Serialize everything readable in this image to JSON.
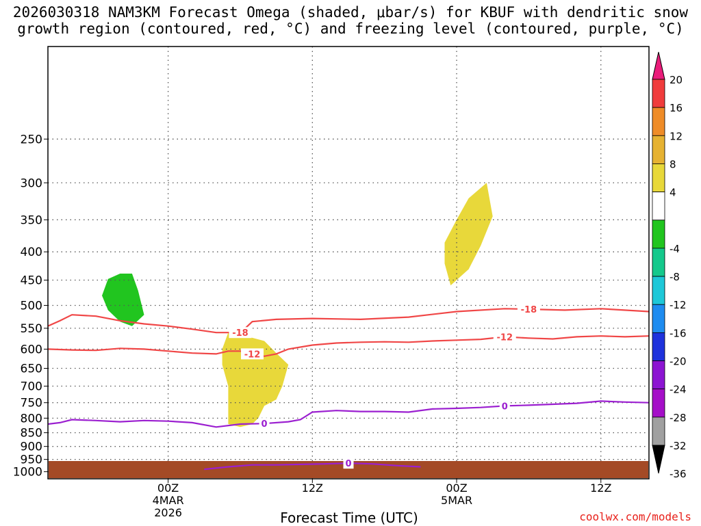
{
  "chart_data": {
    "type": "heatmap",
    "title_line1": "2026030318 NAM3KM Forecast Omega (shaded, μbar/s) for KBUF with dendritic snow",
    "title_line2": "growth region (contoured, red, °C) and freezing level (contoured, purple, °C)",
    "xlabel": "Forecast Time (UTC)",
    "ylabel": "",
    "credit": "coolwx.com/models",
    "x_range_hours": [
      -10,
      40
    ],
    "y_range_hpa": [
      1030,
      170
    ],
    "y_ticks": [
      250,
      300,
      350,
      400,
      450,
      500,
      550,
      600,
      650,
      700,
      750,
      800,
      850,
      900,
      950,
      1000
    ],
    "x_ticks": [
      {
        "hour": 0,
        "lines": [
          "00Z",
          "4MAR",
          "2026"
        ]
      },
      {
        "hour": 12,
        "lines": [
          "12Z"
        ]
      },
      {
        "hour": 24,
        "lines": [
          "00Z",
          "5MAR"
        ]
      },
      {
        "hour": 36,
        "lines": [
          "12Z"
        ]
      },
      {
        "hour": 48,
        "lines": [
          "00Z",
          "6MAR"
        ]
      }
    ],
    "vgrid_hours": [
      0,
      12,
      24,
      36,
      48
    ],
    "colorbar": {
      "labels": [
        "20",
        "16",
        "12",
        "8",
        "4",
        "-4",
        "-8",
        "-12",
        "-16",
        "-20",
        "-24",
        "-28",
        "-32",
        "-36"
      ],
      "colors": [
        "#ea1c7a",
        "#f03c3c",
        "#ef8c28",
        "#e6b232",
        "#e8d83a",
        "#ffffff",
        "#21c51f",
        "#15c98c",
        "#1ec8d8",
        "#1e8cf0",
        "#1e32dc",
        "#8c14d2",
        "#a50fc8",
        "#a0a0a0",
        "#000000"
      ]
    },
    "contours": [
      {
        "name": "dgz-top",
        "label": "-18",
        "color": "#f04646",
        "points": [
          [
            -10,
            545
          ],
          [
            -9,
            533
          ],
          [
            -8,
            520
          ],
          [
            -6,
            523
          ],
          [
            -4,
            533
          ],
          [
            -2,
            540
          ],
          [
            0,
            545
          ],
          [
            2,
            552
          ],
          [
            4,
            560
          ],
          [
            6,
            560
          ],
          [
            6.5,
            548
          ],
          [
            7,
            535
          ],
          [
            9,
            530
          ],
          [
            12,
            528
          ],
          [
            16,
            530
          ],
          [
            20,
            525
          ],
          [
            24,
            513
          ],
          [
            28,
            507
          ],
          [
            30,
            508
          ],
          [
            33,
            510
          ],
          [
            36,
            507
          ],
          [
            40,
            513
          ],
          [
            44,
            518
          ],
          [
            46,
            515
          ],
          [
            47,
            508
          ],
          [
            48,
            510
          ],
          [
            50,
            516
          ],
          [
            51,
            525
          ],
          [
            52,
            530
          ],
          [
            54,
            520
          ]
        ]
      },
      {
        "name": "dgz-bottom",
        "label": "-12",
        "color": "#f04646",
        "points": [
          [
            -10,
            600
          ],
          [
            -8,
            602
          ],
          [
            -6,
            603
          ],
          [
            -4,
            598
          ],
          [
            -2,
            600
          ],
          [
            0,
            605
          ],
          [
            2,
            610
          ],
          [
            4,
            612
          ],
          [
            5,
            605
          ],
          [
            6,
            605
          ],
          [
            7,
            612
          ],
          [
            8,
            618
          ],
          [
            9,
            612
          ],
          [
            10,
            600
          ],
          [
            12,
            590
          ],
          [
            14,
            585
          ],
          [
            16,
            583
          ],
          [
            18,
            582
          ],
          [
            20,
            583
          ],
          [
            22,
            580
          ],
          [
            24,
            578
          ],
          [
            26,
            576
          ],
          [
            28,
            570
          ],
          [
            30,
            573
          ],
          [
            32,
            575
          ],
          [
            34,
            570
          ],
          [
            36,
            568
          ],
          [
            38,
            570
          ],
          [
            40,
            568
          ],
          [
            42,
            565
          ],
          [
            44,
            558
          ],
          [
            46,
            555
          ],
          [
            48,
            556
          ],
          [
            50,
            560
          ],
          [
            52,
            565
          ],
          [
            54,
            570
          ]
        ]
      },
      {
        "name": "freezing-level",
        "label": "0",
        "color": "#9b1fd0",
        "points": [
          [
            -10,
            820
          ],
          [
            -9,
            815
          ],
          [
            -8,
            805
          ],
          [
            -6,
            808
          ],
          [
            -4,
            812
          ],
          [
            -2,
            808
          ],
          [
            0,
            810
          ],
          [
            2,
            815
          ],
          [
            4,
            830
          ],
          [
            6,
            820
          ],
          [
            8,
            818
          ],
          [
            10,
            812
          ],
          [
            11,
            805
          ],
          [
            12,
            780
          ],
          [
            14,
            775
          ],
          [
            16,
            778
          ],
          [
            18,
            778
          ],
          [
            20,
            780
          ],
          [
            22,
            770
          ],
          [
            24,
            768
          ],
          [
            26,
            765
          ],
          [
            28,
            760
          ],
          [
            30,
            758
          ],
          [
            32,
            755
          ],
          [
            34,
            752
          ],
          [
            36,
            745
          ],
          [
            38,
            748
          ],
          [
            40,
            750
          ],
          [
            42,
            742
          ],
          [
            44,
            740
          ],
          [
            46,
            735
          ],
          [
            48,
            738
          ],
          [
            50,
            742
          ],
          [
            52,
            738
          ],
          [
            54,
            745
          ]
        ]
      },
      {
        "name": "freezing-level-low",
        "label": "0",
        "color": "#9b1fd0",
        "points": [
          [
            3,
            990
          ],
          [
            5,
            980
          ],
          [
            7,
            972
          ],
          [
            9,
            972
          ],
          [
            11,
            970
          ],
          [
            13,
            968
          ],
          [
            15,
            965
          ],
          [
            17,
            968
          ],
          [
            19,
            975
          ],
          [
            21,
            980
          ]
        ]
      }
    ],
    "shaded_regions": [
      {
        "name": "yellow-early",
        "color": "#e8d83a",
        "points": [
          [
            5,
            560
          ],
          [
            6,
            565
          ],
          [
            8,
            580
          ],
          [
            9,
            610
          ],
          [
            10,
            640
          ],
          [
            9.5,
            700
          ],
          [
            9,
            740
          ],
          [
            8,
            760
          ],
          [
            7.5,
            800
          ],
          [
            7,
            820
          ],
          [
            6,
            830
          ],
          [
            5,
            820
          ],
          [
            5,
            760
          ],
          [
            5,
            700
          ],
          [
            4.5,
            640
          ],
          [
            4.5,
            600
          ]
        ]
      },
      {
        "name": "yellow-mid",
        "color": "#e8d83a",
        "points": [
          [
            23,
            385
          ],
          [
            24,
            350
          ],
          [
            25,
            320
          ],
          [
            26.5,
            300
          ],
          [
            27,
            345
          ],
          [
            26,
            390
          ],
          [
            25,
            430
          ],
          [
            23.5,
            460
          ],
          [
            23,
            420
          ]
        ]
      },
      {
        "name": "green-early",
        "color": "#21c51f",
        "points": [
          [
            -5,
            448
          ],
          [
            -4,
            438
          ],
          [
            -3,
            438
          ],
          [
            -2.5,
            470
          ],
          [
            -2,
            520
          ],
          [
            -3,
            545
          ],
          [
            -4,
            535
          ],
          [
            -5,
            510
          ],
          [
            -5.5,
            480
          ]
        ]
      },
      {
        "name": "green-storm",
        "color": "#21c51f",
        "points": [
          [
            44,
            520
          ],
          [
            44.5,
            470
          ],
          [
            44,
            420
          ],
          [
            43.5,
            380
          ],
          [
            44,
            350
          ],
          [
            45,
            290
          ],
          [
            46,
            240
          ],
          [
            47,
            225
          ],
          [
            48,
            250
          ],
          [
            48.5,
            320
          ],
          [
            48,
            380
          ],
          [
            48.5,
            440
          ],
          [
            48,
            480
          ],
          [
            47.5,
            520
          ],
          [
            46.5,
            540
          ],
          [
            45.5,
            545
          ]
        ]
      },
      {
        "name": "cyan-storm",
        "color": "#1ec8d8",
        "points": [
          [
            45.5,
            450
          ],
          [
            45.5,
            400
          ],
          [
            46,
            340
          ],
          [
            47,
            320
          ],
          [
            47.5,
            360
          ],
          [
            47.5,
            440
          ],
          [
            47,
            480
          ],
          [
            46.5,
            500
          ],
          [
            46,
            490
          ]
        ]
      },
      {
        "name": "blue-core",
        "color": "#1e32dc",
        "points": [
          [
            46,
            420
          ],
          [
            46.3,
            380
          ],
          [
            46.6,
            370
          ],
          [
            47,
            400
          ],
          [
            47,
            450
          ],
          [
            46.6,
            480
          ],
          [
            46.2,
            470
          ]
        ]
      },
      {
        "name": "orange-low",
        "color": "#ef8c28",
        "points": [
          [
            44,
            600
          ],
          [
            45,
            585
          ],
          [
            46,
            600
          ],
          [
            47,
            650
          ],
          [
            47.5,
            700
          ],
          [
            47,
            760
          ],
          [
            46.5,
            790
          ],
          [
            45.5,
            760
          ],
          [
            45,
            700
          ],
          [
            44.5,
            650
          ]
        ]
      },
      {
        "name": "pink-low",
        "color": "#ea1c7a",
        "points": [
          [
            45.5,
            700
          ],
          [
            45.6,
            670
          ],
          [
            46,
            660
          ],
          [
            46.3,
            690
          ],
          [
            46.2,
            720
          ],
          [
            45.8,
            730
          ]
        ]
      },
      {
        "name": "green-lowcore",
        "color": "#21c51f",
        "points": [
          [
            48,
            700
          ],
          [
            48.5,
            660
          ],
          [
            49.5,
            640
          ],
          [
            50.5,
            650
          ],
          [
            51,
            700
          ],
          [
            51,
            780
          ],
          [
            50.5,
            860
          ],
          [
            50,
            900
          ],
          [
            49,
            930
          ],
          [
            48,
            920
          ],
          [
            47.5,
            860
          ],
          [
            47.8,
            780
          ]
        ]
      },
      {
        "name": "cyan-lowcore",
        "color": "#1ec8d8",
        "points": [
          [
            48.3,
            750
          ],
          [
            48.6,
            700
          ],
          [
            49.2,
            690
          ],
          [
            49.8,
            720
          ],
          [
            49.7,
            800
          ],
          [
            49.3,
            850
          ],
          [
            48.7,
            840
          ],
          [
            48.3,
            800
          ]
        ]
      },
      {
        "name": "purple-lowcore",
        "color": "#8c14d2",
        "points": [
          [
            48.6,
            740
          ],
          [
            48.8,
            720
          ],
          [
            49.1,
            720
          ],
          [
            49.2,
            780
          ],
          [
            49,
            820
          ],
          [
            48.7,
            800
          ]
        ]
      }
    ]
  }
}
